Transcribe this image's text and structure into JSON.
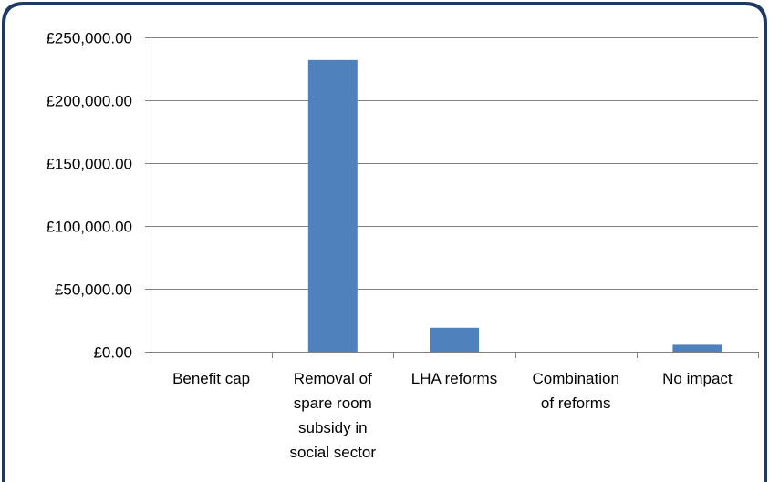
{
  "chart_data": {
    "type": "bar",
    "title": "",
    "xlabel": "",
    "ylabel": "",
    "ylim": [
      0,
      250000
    ],
    "grid": true,
    "legend": "none",
    "categories": [
      [
        "Benefit cap"
      ],
      [
        "Removal of",
        "spare room",
        "subsidy in",
        "social sector"
      ],
      [
        "LHA reforms"
      ],
      [
        "Combination",
        "of reforms"
      ],
      [
        "No impact"
      ]
    ],
    "values": [
      0,
      232000,
      19000,
      0,
      5500
    ],
    "y_ticks": [
      {
        "value": 0,
        "label": "£0.00"
      },
      {
        "value": 50000,
        "label": "£50,000.00"
      },
      {
        "value": 100000,
        "label": "£100,000.00"
      },
      {
        "value": 150000,
        "label": "£150,000.00"
      },
      {
        "value": 200000,
        "label": "£200,000.00"
      },
      {
        "value": 250000,
        "label": "£250,000.00"
      }
    ],
    "colors": {
      "bar": "#4f81bd",
      "frame": "#1f3864",
      "gridline": "#808080",
      "axis_text": "#000000"
    }
  }
}
